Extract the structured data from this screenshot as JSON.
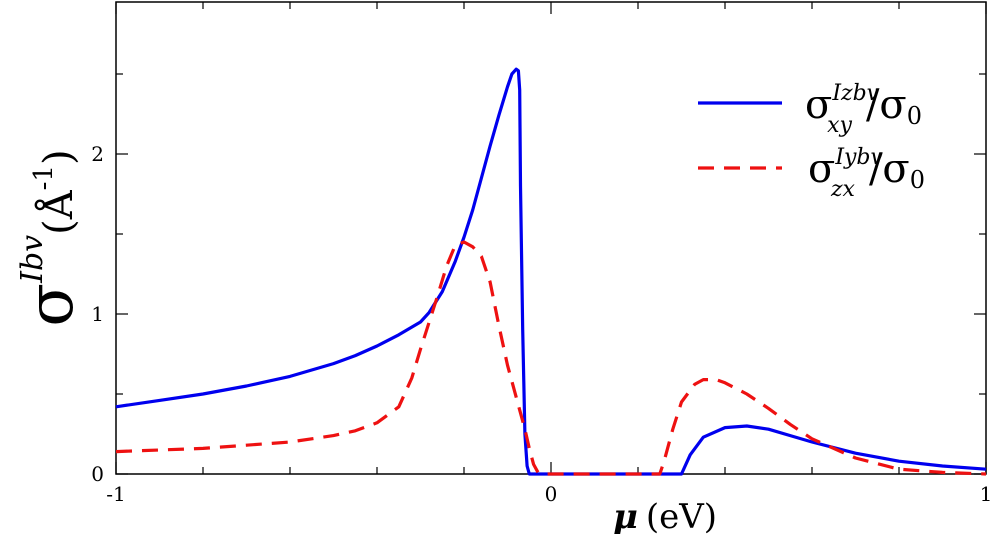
{
  "chart_data": {
    "type": "line",
    "xlabel": {
      "symbol": "μ",
      "unit": "(eV)"
    },
    "ylabel": {
      "symbol": "σ",
      "sup": "Ibv",
      "unit": "(Å",
      "unit_sup": "-1",
      "close": ")"
    },
    "xlim": [
      -1,
      1
    ],
    "ylim": [
      0,
      2.95
    ],
    "x_ticks": [
      -1,
      0,
      1
    ],
    "x_tick_labels": [
      "-1",
      "0",
      "1"
    ],
    "y_ticks": [
      0,
      1,
      2
    ],
    "y_tick_labels": [
      "0",
      "1",
      "2"
    ],
    "legend_position": "top-right",
    "series": [
      {
        "name": "σxy^Izbv/σ0",
        "legend": {
          "base": "σ",
          "sup": "Izbv",
          "sub": "xy",
          "over": "/σ",
          "over_sub": "0"
        },
        "color": "#0000ee",
        "style": "solid",
        "x": [
          -1.0,
          -0.9,
          -0.8,
          -0.7,
          -0.6,
          -0.5,
          -0.45,
          -0.4,
          -0.35,
          -0.3,
          -0.28,
          -0.25,
          -0.22,
          -0.2,
          -0.18,
          -0.16,
          -0.14,
          -0.12,
          -0.1,
          -0.09,
          -0.08,
          -0.075,
          -0.072,
          -0.07,
          -0.065,
          -0.06,
          -0.055,
          -0.05,
          0.0,
          0.1,
          0.2,
          0.28,
          0.3,
          0.32,
          0.35,
          0.4,
          0.45,
          0.5,
          0.55,
          0.6,
          0.7,
          0.8,
          0.9,
          1.0
        ],
        "y": [
          0.42,
          0.46,
          0.5,
          0.55,
          0.61,
          0.69,
          0.74,
          0.8,
          0.87,
          0.95,
          1.01,
          1.14,
          1.33,
          1.48,
          1.65,
          1.85,
          2.05,
          2.24,
          2.42,
          2.5,
          2.53,
          2.52,
          2.4,
          1.8,
          0.9,
          0.25,
          0.05,
          0.0,
          0.0,
          0.0,
          0.0,
          0.0,
          0.0,
          0.12,
          0.23,
          0.29,
          0.3,
          0.28,
          0.24,
          0.2,
          0.13,
          0.08,
          0.05,
          0.03
        ]
      },
      {
        "name": "σzx^Iybv/σ0",
        "legend": {
          "base": "σ",
          "sup": "Iybv",
          "sub": "zx",
          "over": "/σ",
          "over_sub": "0"
        },
        "color": "#ee1111",
        "style": "dashed",
        "x": [
          -1.0,
          -0.9,
          -0.8,
          -0.7,
          -0.6,
          -0.5,
          -0.45,
          -0.4,
          -0.35,
          -0.32,
          -0.3,
          -0.28,
          -0.26,
          -0.24,
          -0.22,
          -0.2,
          -0.18,
          -0.16,
          -0.14,
          -0.12,
          -0.1,
          -0.08,
          -0.06,
          -0.05,
          -0.04,
          -0.03,
          -0.02,
          -0.01,
          0.0,
          0.1,
          0.2,
          0.25,
          0.26,
          0.28,
          0.3,
          0.33,
          0.35,
          0.38,
          0.4,
          0.45,
          0.5,
          0.55,
          0.6,
          0.7,
          0.8,
          0.9,
          1.0
        ],
        "y": [
          0.14,
          0.15,
          0.16,
          0.18,
          0.2,
          0.24,
          0.27,
          0.32,
          0.42,
          0.6,
          0.78,
          0.95,
          1.12,
          1.3,
          1.43,
          1.45,
          1.42,
          1.36,
          1.2,
          0.93,
          0.68,
          0.48,
          0.28,
          0.16,
          0.06,
          0.01,
          0.0,
          0.0,
          0.0,
          0.0,
          0.0,
          0.0,
          0.08,
          0.28,
          0.45,
          0.56,
          0.59,
          0.59,
          0.57,
          0.5,
          0.41,
          0.31,
          0.22,
          0.1,
          0.03,
          0.01,
          0.0
        ]
      }
    ]
  }
}
